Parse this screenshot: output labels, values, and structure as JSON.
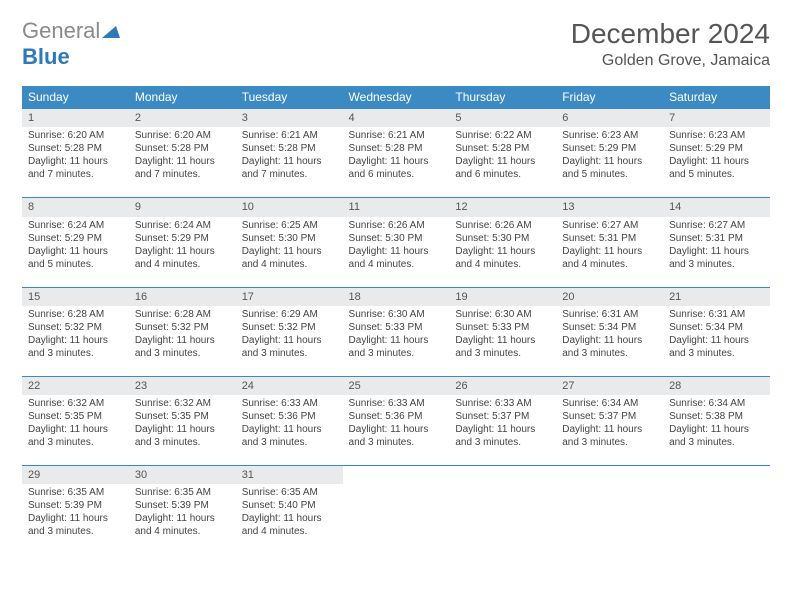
{
  "brand": {
    "part1": "General",
    "part2": "Blue",
    "gray_color": "#8a8a8a",
    "blue_color": "#2e7ab8",
    "mark_color": "#2e7ab8"
  },
  "header": {
    "month_title": "December 2024",
    "location": "Golden Grove, Jamaica",
    "title_color": "#555555",
    "title_fontsize": 28,
    "location_fontsize": 16
  },
  "calendar": {
    "header_bg": "#3c8ac4",
    "header_fg": "#ffffff",
    "daynum_bg": "#e9eaeb",
    "border_color": "#3c8ac4",
    "cell_fontsize": 10,
    "days_of_week": [
      "Sunday",
      "Monday",
      "Tuesday",
      "Wednesday",
      "Thursday",
      "Friday",
      "Saturday"
    ],
    "days": [
      {
        "n": 1,
        "sunrise": "6:20 AM",
        "sunset": "5:28 PM",
        "daylight": "11 hours and 7 minutes."
      },
      {
        "n": 2,
        "sunrise": "6:20 AM",
        "sunset": "5:28 PM",
        "daylight": "11 hours and 7 minutes."
      },
      {
        "n": 3,
        "sunrise": "6:21 AM",
        "sunset": "5:28 PM",
        "daylight": "11 hours and 7 minutes."
      },
      {
        "n": 4,
        "sunrise": "6:21 AM",
        "sunset": "5:28 PM",
        "daylight": "11 hours and 6 minutes."
      },
      {
        "n": 5,
        "sunrise": "6:22 AM",
        "sunset": "5:28 PM",
        "daylight": "11 hours and 6 minutes."
      },
      {
        "n": 6,
        "sunrise": "6:23 AM",
        "sunset": "5:29 PM",
        "daylight": "11 hours and 5 minutes."
      },
      {
        "n": 7,
        "sunrise": "6:23 AM",
        "sunset": "5:29 PM",
        "daylight": "11 hours and 5 minutes."
      },
      {
        "n": 8,
        "sunrise": "6:24 AM",
        "sunset": "5:29 PM",
        "daylight": "11 hours and 5 minutes."
      },
      {
        "n": 9,
        "sunrise": "6:24 AM",
        "sunset": "5:29 PM",
        "daylight": "11 hours and 4 minutes."
      },
      {
        "n": 10,
        "sunrise": "6:25 AM",
        "sunset": "5:30 PM",
        "daylight": "11 hours and 4 minutes."
      },
      {
        "n": 11,
        "sunrise": "6:26 AM",
        "sunset": "5:30 PM",
        "daylight": "11 hours and 4 minutes."
      },
      {
        "n": 12,
        "sunrise": "6:26 AM",
        "sunset": "5:30 PM",
        "daylight": "11 hours and 4 minutes."
      },
      {
        "n": 13,
        "sunrise": "6:27 AM",
        "sunset": "5:31 PM",
        "daylight": "11 hours and 4 minutes."
      },
      {
        "n": 14,
        "sunrise": "6:27 AM",
        "sunset": "5:31 PM",
        "daylight": "11 hours and 3 minutes."
      },
      {
        "n": 15,
        "sunrise": "6:28 AM",
        "sunset": "5:32 PM",
        "daylight": "11 hours and 3 minutes."
      },
      {
        "n": 16,
        "sunrise": "6:28 AM",
        "sunset": "5:32 PM",
        "daylight": "11 hours and 3 minutes."
      },
      {
        "n": 17,
        "sunrise": "6:29 AM",
        "sunset": "5:32 PM",
        "daylight": "11 hours and 3 minutes."
      },
      {
        "n": 18,
        "sunrise": "6:30 AM",
        "sunset": "5:33 PM",
        "daylight": "11 hours and 3 minutes."
      },
      {
        "n": 19,
        "sunrise": "6:30 AM",
        "sunset": "5:33 PM",
        "daylight": "11 hours and 3 minutes."
      },
      {
        "n": 20,
        "sunrise": "6:31 AM",
        "sunset": "5:34 PM",
        "daylight": "11 hours and 3 minutes."
      },
      {
        "n": 21,
        "sunrise": "6:31 AM",
        "sunset": "5:34 PM",
        "daylight": "11 hours and 3 minutes."
      },
      {
        "n": 22,
        "sunrise": "6:32 AM",
        "sunset": "5:35 PM",
        "daylight": "11 hours and 3 minutes."
      },
      {
        "n": 23,
        "sunrise": "6:32 AM",
        "sunset": "5:35 PM",
        "daylight": "11 hours and 3 minutes."
      },
      {
        "n": 24,
        "sunrise": "6:33 AM",
        "sunset": "5:36 PM",
        "daylight": "11 hours and 3 minutes."
      },
      {
        "n": 25,
        "sunrise": "6:33 AM",
        "sunset": "5:36 PM",
        "daylight": "11 hours and 3 minutes."
      },
      {
        "n": 26,
        "sunrise": "6:33 AM",
        "sunset": "5:37 PM",
        "daylight": "11 hours and 3 minutes."
      },
      {
        "n": 27,
        "sunrise": "6:34 AM",
        "sunset": "5:37 PM",
        "daylight": "11 hours and 3 minutes."
      },
      {
        "n": 28,
        "sunrise": "6:34 AM",
        "sunset": "5:38 PM",
        "daylight": "11 hours and 3 minutes."
      },
      {
        "n": 29,
        "sunrise": "6:35 AM",
        "sunset": "5:39 PM",
        "daylight": "11 hours and 3 minutes."
      },
      {
        "n": 30,
        "sunrise": "6:35 AM",
        "sunset": "5:39 PM",
        "daylight": "11 hours and 4 minutes."
      },
      {
        "n": 31,
        "sunrise": "6:35 AM",
        "sunset": "5:40 PM",
        "daylight": "11 hours and 4 minutes."
      }
    ],
    "labels": {
      "sunrise_prefix": "Sunrise: ",
      "sunset_prefix": "Sunset: ",
      "daylight_prefix": "Daylight: "
    }
  }
}
